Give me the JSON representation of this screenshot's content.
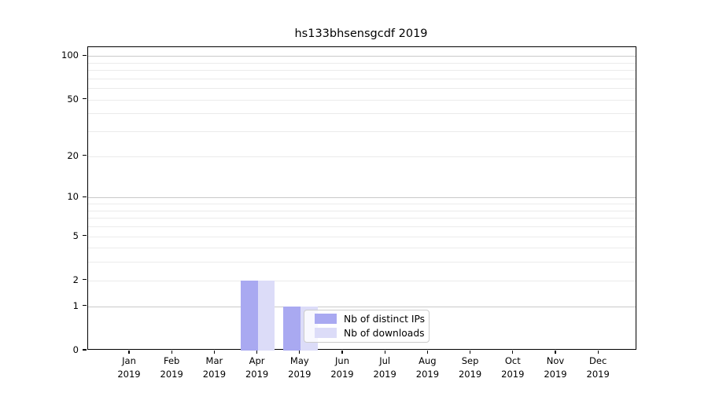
{
  "chart_data": {
    "type": "bar",
    "title": "hs133bhsensgcdf 2019",
    "year": "2019",
    "categories": [
      "Jan",
      "Feb",
      "Mar",
      "Apr",
      "May",
      "Jun",
      "Jul",
      "Aug",
      "Sep",
      "Oct",
      "Nov",
      "Dec"
    ],
    "series": [
      {
        "name": "Nb of distinct IPs",
        "color": "#a9a9f1",
        "values": [
          0,
          0,
          0,
          2,
          1,
          0,
          0,
          0,
          0,
          0,
          0,
          0
        ]
      },
      {
        "name": "Nb of downloads",
        "color": "#dcdcf8",
        "values": [
          0,
          0,
          0,
          2,
          1,
          0,
          0,
          0,
          0,
          0,
          0,
          0
        ]
      }
    ],
    "xlabel": "",
    "ylabel": "",
    "y_scale": "log1p",
    "ylim": [
      0,
      115
    ],
    "yticks": [
      0,
      1,
      2,
      5,
      10,
      20,
      50,
      100
    ],
    "major_gridlines": [
      1,
      10,
      100
    ],
    "minor_gridlines": [
      2,
      3,
      4,
      5,
      6,
      7,
      8,
      9,
      20,
      30,
      40,
      50,
      60,
      70,
      80,
      90
    ],
    "grid": "on",
    "legend_position": "lower-right-inside",
    "colors": {
      "major_grid": "#c9c9c9",
      "minor_grid": "#ebebeb",
      "spine": "#000000",
      "text": "#000000",
      "legend_border": "#cccccc",
      "legend_bg": "rgba(255,255,255,0.8)"
    }
  }
}
